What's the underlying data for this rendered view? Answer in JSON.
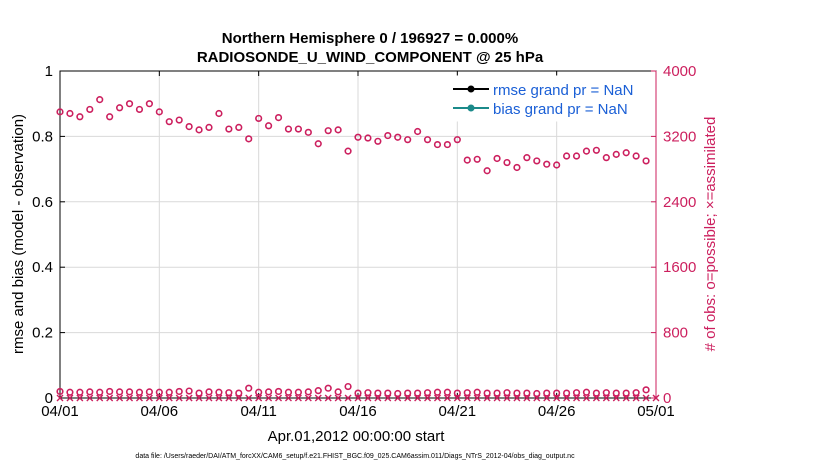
{
  "chart_data": {
    "type": "scatter",
    "title_line1": "Northern Hemisphere 0 / 196927 = 0.000%",
    "title_line2": "RADIOSONDE_U_WIND_COMPONENT @ 25 hPa",
    "xlabel": "Apr.01,2012 00:00:00 start",
    "ylabel_left": "rmse and bias (model - observation)",
    "ylabel_right": "# of obs: o=possible; ×=assimilated",
    "xlim": [
      0,
      30
    ],
    "ylim_left": [
      0,
      1
    ],
    "ylim_right": [
      0,
      4000
    ],
    "x_ticks": [
      0,
      5,
      10,
      15,
      20,
      25,
      30
    ],
    "x_tick_labels": [
      "04/01",
      "04/06",
      "04/11",
      "04/16",
      "04/21",
      "04/26",
      "05/01"
    ],
    "y_left_ticks": [
      0,
      0.2,
      0.4,
      0.6,
      0.8,
      1
    ],
    "y_left_tick_labels": [
      "0",
      "0.2",
      "0.4",
      "0.6",
      "0.8",
      "1"
    ],
    "y_right_ticks": [
      0,
      800,
      1600,
      2400,
      3200,
      4000
    ],
    "y_right_tick_labels": [
      "0",
      "800",
      "1600",
      "2400",
      "3200",
      "4000"
    ],
    "legend": [
      {
        "label": "rmse grand pr = NaN",
        "color": "#000000"
      },
      {
        "label": "bias grand pr = NaN",
        "color": "#1b8a8a"
      }
    ],
    "series": [
      {
        "name": "possible obs (upper)",
        "marker": "circle",
        "color": "#cc1f5e",
        "x": [
          0,
          0.5,
          1,
          1.5,
          2,
          2.5,
          3,
          3.5,
          4,
          4.5,
          5,
          5.5,
          6,
          6.5,
          7,
          7.5,
          8,
          8.5,
          9,
          9.5,
          10,
          10.5,
          11,
          11.5,
          12,
          12.5,
          13,
          13.5,
          14,
          14.5,
          15,
          15.5,
          16,
          16.5,
          17,
          17.5,
          18,
          18.5,
          19,
          19.5,
          20,
          20.5,
          21,
          21.5,
          22,
          22.5,
          23,
          23.5,
          24,
          24.5,
          25,
          25.5,
          26,
          26.5,
          27,
          27.5,
          28,
          28.5,
          29,
          29.5
        ],
        "values": [
          3500,
          3480,
          3440,
          3530,
          3650,
          3440,
          3550,
          3600,
          3530,
          3600,
          3500,
          3380,
          3400,
          3320,
          3280,
          3310,
          3480,
          3290,
          3310,
          3170,
          3420,
          3330,
          3430,
          3290,
          3290,
          3250,
          3110,
          3270,
          3280,
          3020,
          3190,
          3180,
          3140,
          3210,
          3190,
          3160,
          3260,
          3160,
          3100,
          3100,
          3160,
          2910,
          2920,
          2780,
          2930,
          2880,
          2820,
          2940,
          2900,
          2860,
          2850,
          2960,
          2960,
          3020,
          3030,
          2940,
          2980,
          3000,
          2960,
          2900
        ]
      },
      {
        "name": "possible obs (lower)",
        "marker": "circle",
        "color": "#cc1f5e",
        "x": [
          0,
          0.5,
          1,
          1.5,
          2,
          2.5,
          3,
          3.5,
          4,
          4.5,
          5,
          5.5,
          6,
          6.5,
          7,
          7.5,
          8,
          8.5,
          9,
          9.5,
          10,
          10.5,
          11,
          11.5,
          12,
          12.5,
          13,
          13.5,
          14,
          14.5,
          15,
          15.5,
          16,
          16.5,
          17,
          17.5,
          18,
          18.5,
          19,
          19.5,
          20,
          20.5,
          21,
          21.5,
          22,
          22.5,
          23,
          23.5,
          24,
          24.5,
          25,
          25.5,
          26,
          26.5,
          27,
          27.5,
          28,
          28.5,
          29,
          29.5
        ],
        "values": [
          80,
          70,
          70,
          75,
          70,
          80,
          75,
          75,
          70,
          75,
          70,
          70,
          80,
          85,
          60,
          75,
          70,
          65,
          60,
          120,
          70,
          75,
          80,
          70,
          70,
          75,
          90,
          120,
          75,
          140,
          60,
          65,
          60,
          60,
          55,
          60,
          60,
          65,
          70,
          70,
          60,
          65,
          70,
          60,
          60,
          65,
          60,
          60,
          55,
          60,
          60,
          60,
          65,
          70,
          60,
          65,
          60,
          60,
          65,
          100
        ]
      },
      {
        "name": "assimilated obs",
        "marker": "x",
        "color": "#cc1f5e",
        "x": [
          0,
          0.5,
          1,
          1.5,
          2,
          2.5,
          3,
          3.5,
          4,
          4.5,
          5,
          5.5,
          6,
          6.5,
          7,
          7.5,
          8,
          8.5,
          9,
          9.5,
          10,
          10.5,
          11,
          11.5,
          12,
          12.5,
          13,
          13.5,
          14,
          14.5,
          15,
          15.5,
          16,
          16.5,
          17,
          17.5,
          18,
          18.5,
          19,
          19.5,
          20,
          20.5,
          21,
          21.5,
          22,
          22.5,
          23,
          23.5,
          24,
          24.5,
          25,
          25.5,
          26,
          26.5,
          27,
          27.5,
          28,
          28.5,
          29,
          29.5,
          30
        ],
        "values": [
          0,
          0,
          0,
          0,
          0,
          0,
          0,
          0,
          0,
          0,
          0,
          0,
          0,
          0,
          0,
          0,
          0,
          0,
          0,
          0,
          0,
          0,
          0,
          0,
          0,
          0,
          0,
          0,
          0,
          0,
          0,
          0,
          0,
          0,
          0,
          0,
          0,
          0,
          0,
          0,
          0,
          0,
          0,
          0,
          0,
          0,
          0,
          0,
          0,
          0,
          0,
          0,
          0,
          0,
          0,
          0,
          0,
          0,
          0,
          0,
          0
        ]
      }
    ],
    "grid": true
  },
  "footer": "data file: /Users/raeder/DAI/ATM_forcXX/CAM6_setup/f.e21.FHIST_BGC.f09_025.CAM6assim.011/Diags_NTrS_2012-04/obs_diag_output.nc",
  "colors": {
    "right_axis": "#cc1f5e",
    "legend_text": "#1a5fd6",
    "grid": "#d9d9d9"
  }
}
